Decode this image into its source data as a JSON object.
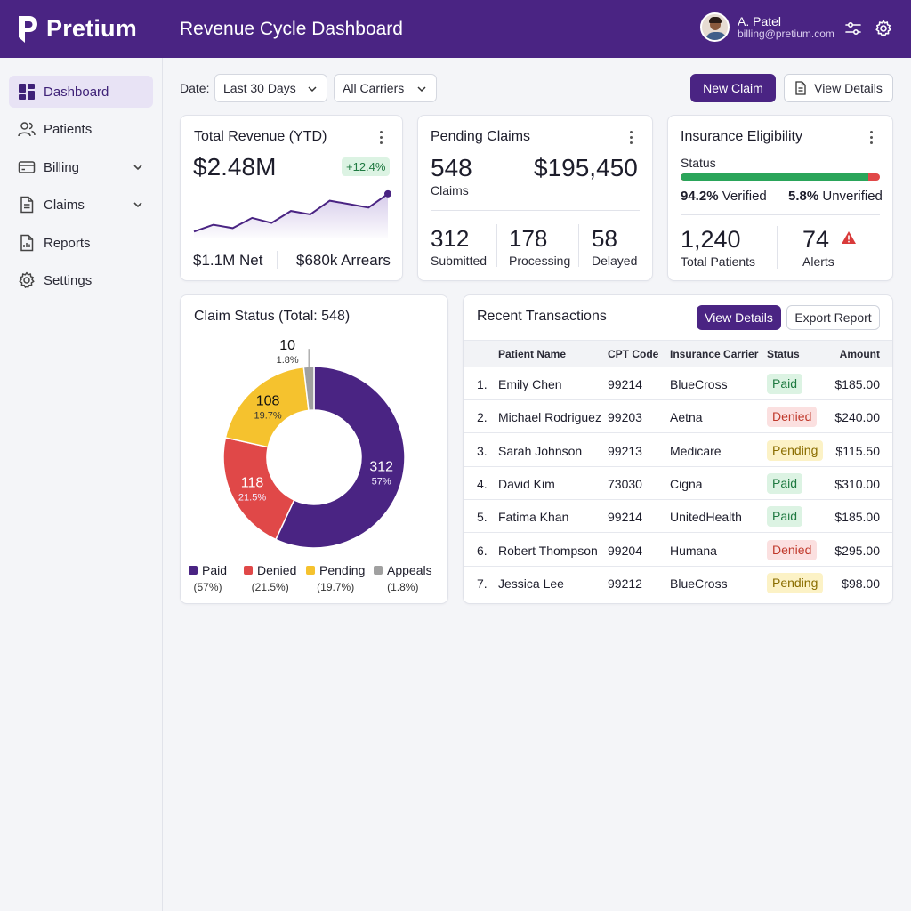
{
  "header": {
    "brand": "Pretium",
    "title": "Revenue Cycle Dashboard",
    "user_name": "A. Patel",
    "user_email": "billing@pretium.com"
  },
  "sidebar": {
    "items": [
      {
        "label": "Dashboard",
        "icon": "dashboard-icon",
        "active": true
      },
      {
        "label": "Patients",
        "icon": "users-icon"
      },
      {
        "label": "Billing",
        "icon": "credit-card-icon",
        "expandable": true
      },
      {
        "label": "Claims",
        "icon": "document-icon",
        "expandable": true
      },
      {
        "label": "Reports",
        "icon": "report-icon"
      },
      {
        "label": "Settings",
        "icon": "gear-icon"
      }
    ]
  },
  "filters": {
    "date_label": "Date:",
    "date_value": "Last 30 Days",
    "carrier_value": "All Carriers"
  },
  "actions": {
    "new_claim": "New Claim",
    "view_details": "View Details"
  },
  "revenue": {
    "title": "Total Revenue (YTD)",
    "value": "$2.48M",
    "change": "+12.4%",
    "net": "$1.1M Net",
    "arrears": "$680k Arrears"
  },
  "pending": {
    "title": "Pending Claims",
    "count": "548",
    "count_label": "Claims",
    "amount": "$195,450",
    "stats": [
      {
        "value": "312",
        "label": "Submitted"
      },
      {
        "value": "178",
        "label": "Processing"
      },
      {
        "value": "58",
        "label": "Delayed"
      }
    ]
  },
  "eligibility": {
    "title": "Insurance Eligibility",
    "status_label": "Status",
    "verified_pct": "94.2%",
    "verified_label": "Verified",
    "unverified_pct": "5.8%",
    "unverified_label": "Unverified",
    "verified_fraction": 0.942,
    "total_patients": "1,240",
    "total_patients_label": "Total Patients",
    "alerts": "74",
    "alerts_label": "Alerts"
  },
  "claim_status": {
    "title": "Claim Status (Total: 548)",
    "legend": [
      {
        "name": "Paid",
        "pct": "(57%)",
        "color": "#4a2483"
      },
      {
        "name": "Denied",
        "pct": "(21.5%)",
        "color": "#e04848"
      },
      {
        "name": "Pending",
        "pct": "(19.7%)",
        "color": "#f5c22e"
      },
      {
        "name": "Appeals",
        "pct": "(1.8%)",
        "color": "#a0a0a0"
      }
    ]
  },
  "chart_data": [
    {
      "type": "line",
      "title": "",
      "x": [
        0,
        1,
        2,
        3,
        4,
        5,
        6,
        7,
        8,
        9,
        10
      ],
      "values": [
        8,
        16,
        12,
        24,
        18,
        32,
        28,
        44,
        40,
        36,
        52
      ],
      "grid": false,
      "color": "#4a2483"
    },
    {
      "type": "pie",
      "title": "Claim Status (Total: 548)",
      "categories": [
        "Paid",
        "Denied",
        "Pending",
        "Appeals"
      ],
      "values": [
        312,
        118,
        108,
        10
      ],
      "labels": [
        "57%",
        "21.5%",
        "19.7%",
        "1.8%"
      ],
      "colors": [
        "#4a2483",
        "#e04848",
        "#f5c22e",
        "#a0a0a0"
      ],
      "donut": true
    }
  ],
  "transactions": {
    "title": "Recent Transactions",
    "view_details": "View Details",
    "export": "Export Report",
    "columns": [
      "Patient Name",
      "CPT Code",
      "Insurance Carrier",
      "Status",
      "Amount"
    ],
    "rows": [
      {
        "num": "1.",
        "name": "Emily Chen",
        "cpt": "99214",
        "carrier": "BlueCross",
        "status": "Paid",
        "amount": "$185.00"
      },
      {
        "num": "2.",
        "name": "Michael Rodriguez",
        "cpt": "99203",
        "carrier": "Aetna",
        "status": "Denied",
        "amount": "$240.00"
      },
      {
        "num": "3.",
        "name": "Sarah Johnson",
        "cpt": "99213",
        "carrier": "Medicare",
        "status": "Pending",
        "amount": "$115.50"
      },
      {
        "num": "4.",
        "name": "David Kim",
        "cpt": "73030",
        "carrier": "Cigna",
        "status": "Paid",
        "amount": "$310.00"
      },
      {
        "num": "5.",
        "name": "Fatima Khan",
        "cpt": "99214",
        "carrier": "UnitedHealth",
        "status": "Paid",
        "amount": "$185.00"
      },
      {
        "num": "6.",
        "name": "Robert Thompson",
        "cpt": "99204",
        "carrier": "Humana",
        "status": "Denied",
        "amount": "$295.00"
      },
      {
        "num": "7.",
        "name": "Jessica Lee",
        "cpt": "99212",
        "carrier": "BlueCross",
        "status": "Pending",
        "amount": "$98.00"
      }
    ]
  }
}
